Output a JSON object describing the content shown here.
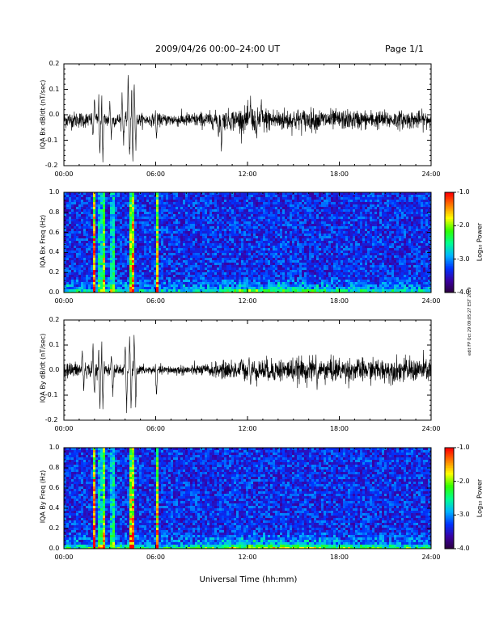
{
  "header": {
    "title": "2009/04/26  00:00–24:00 UT",
    "page": "Page 1/1"
  },
  "side_note": "edit FP Oct 29 09:05:27 EST 2019",
  "x_axis": {
    "label": "Universal Time (hh:mm)",
    "ticks": [
      "00:00",
      "06:00",
      "12:00",
      "18:00",
      "24:00"
    ],
    "range_hours": [
      0,
      24
    ]
  },
  "colors": {
    "trace": "#000000",
    "spectrogram_background": "#1a0830",
    "colorbar": [
      "#2b0038",
      "#3a00a0",
      "#0033ff",
      "#00b4ff",
      "#00ff90",
      "#30ff00",
      "#ffff00",
      "#ff8000",
      "#ff0000"
    ]
  },
  "chart_data": [
    {
      "type": "line",
      "ylabel": "IQA Bx dB/dt (nT/sec)",
      "ylim": [
        -0.2,
        0.2
      ],
      "yticks": [
        "0.2",
        "0.1",
        "0.0",
        "-0.1",
        "-0.2"
      ],
      "baseline": -0.02,
      "noise_amplitude": [
        [
          0,
          0.03
        ],
        [
          6,
          0.02
        ],
        [
          10,
          0.03
        ],
        [
          12,
          0.045
        ],
        [
          18,
          0.035
        ],
        [
          24,
          0.03
        ]
      ],
      "events": [
        {
          "x": 2.3,
          "y": 0.2
        },
        {
          "x": 2.35,
          "y": -0.2
        },
        {
          "x": 2.5,
          "y": 0.2
        },
        {
          "x": 2.55,
          "y": -0.2
        },
        {
          "x": 2.0,
          "y": 0.08
        },
        {
          "x": 1.9,
          "y": -0.1
        },
        {
          "x": 3.0,
          "y": 0.07
        },
        {
          "x": 3.1,
          "y": -0.1
        },
        {
          "x": 3.8,
          "y": 0.11
        },
        {
          "x": 3.9,
          "y": -0.13
        },
        {
          "x": 4.2,
          "y": 0.2
        },
        {
          "x": 4.3,
          "y": -0.2
        },
        {
          "x": 4.45,
          "y": 0.2
        },
        {
          "x": 4.5,
          "y": -0.2
        },
        {
          "x": 4.6,
          "y": 0.15
        },
        {
          "x": 4.7,
          "y": -0.17
        },
        {
          "x": 6.0,
          "y": 0.04
        },
        {
          "x": 6.05,
          "y": -0.11
        },
        {
          "x": 10.1,
          "y": -0.1
        },
        {
          "x": 10.3,
          "y": -0.18
        },
        {
          "x": 12.2,
          "y": 0.07
        },
        {
          "x": 12.9,
          "y": 0.08
        },
        {
          "x": 12.6,
          "y": -0.09
        }
      ]
    },
    {
      "type": "heatmap",
      "ylabel": "IQA Bx Freq (Hz)",
      "ylim": [
        0.0,
        1.0
      ],
      "yticks": [
        "1.0",
        "0.8",
        "0.6",
        "0.4",
        "0.2",
        "0.0"
      ],
      "colorbar_label": "Log₁₀ Power",
      "colorbar_ticks": [
        "-1.0",
        "-2.0",
        "-3.0",
        "-4.0"
      ],
      "clim": [
        -4.0,
        -1.0
      ],
      "bright_times": [
        2.3,
        2.5,
        3.1,
        4.25,
        4.45,
        1.9,
        6.0
      ],
      "low_freq_band_intensity": [
        [
          0,
          0.45
        ],
        [
          6,
          0.35
        ],
        [
          10,
          0.45
        ],
        [
          12,
          0.7
        ],
        [
          16,
          0.6
        ],
        [
          20,
          0.45
        ],
        [
          24,
          0.4
        ]
      ]
    },
    {
      "type": "line",
      "ylabel": "IQA By dB/dt (nT/sec)",
      "ylim": [
        -0.2,
        0.2
      ],
      "yticks": [
        "0.2",
        "0.1",
        "0.0",
        "-0.1",
        "-0.2"
      ],
      "baseline": 0.0,
      "noise_amplitude": [
        [
          0,
          0.03
        ],
        [
          6,
          0.015
        ],
        [
          9,
          0.02
        ],
        [
          11,
          0.035
        ],
        [
          13,
          0.04
        ],
        [
          17,
          0.045
        ],
        [
          20,
          0.04
        ],
        [
          24,
          0.045
        ]
      ],
      "events": [
        {
          "x": 1.2,
          "y": 0.08
        },
        {
          "x": 1.3,
          "y": -0.09
        },
        {
          "x": 1.9,
          "y": 0.12
        },
        {
          "x": 2.0,
          "y": -0.13
        },
        {
          "x": 2.3,
          "y": 0.2
        },
        {
          "x": 2.35,
          "y": -0.2
        },
        {
          "x": 2.5,
          "y": 0.2
        },
        {
          "x": 2.55,
          "y": -0.2
        },
        {
          "x": 3.1,
          "y": 0.08
        },
        {
          "x": 3.2,
          "y": -0.13
        },
        {
          "x": 4.0,
          "y": 0.13
        },
        {
          "x": 4.1,
          "y": -0.2
        },
        {
          "x": 4.3,
          "y": 0.2
        },
        {
          "x": 4.4,
          "y": -0.2
        },
        {
          "x": 4.6,
          "y": 0.18
        },
        {
          "x": 4.7,
          "y": -0.17
        },
        {
          "x": 6.0,
          "y": 0.04
        },
        {
          "x": 6.05,
          "y": -0.17
        },
        {
          "x": 11.6,
          "y": 0.06
        },
        {
          "x": 12.1,
          "y": 0.07
        },
        {
          "x": 12.2,
          "y": -0.06
        },
        {
          "x": 16.5,
          "y": 0.1
        },
        {
          "x": 16.55,
          "y": -0.08
        }
      ]
    },
    {
      "type": "heatmap",
      "ylabel": "IQA By Freq (Hz)",
      "ylim": [
        0.0,
        1.0
      ],
      "yticks": [
        "1.0",
        "0.8",
        "0.6",
        "0.4",
        "0.2",
        "0.0"
      ],
      "colorbar_label": "Log₁₀ Power",
      "colorbar_ticks": [
        "-1.0",
        "-2.0",
        "-3.0",
        "-4.0"
      ],
      "clim": [
        -4.0,
        -1.0
      ],
      "bright_times": [
        2.3,
        2.5,
        3.1,
        4.25,
        4.45,
        1.9,
        6.0
      ],
      "low_freq_band_intensity": [
        [
          0,
          0.45
        ],
        [
          6,
          0.4
        ],
        [
          10,
          0.5
        ],
        [
          12,
          0.7
        ],
        [
          16,
          0.65
        ],
        [
          20,
          0.5
        ],
        [
          24,
          0.45
        ]
      ]
    }
  ]
}
